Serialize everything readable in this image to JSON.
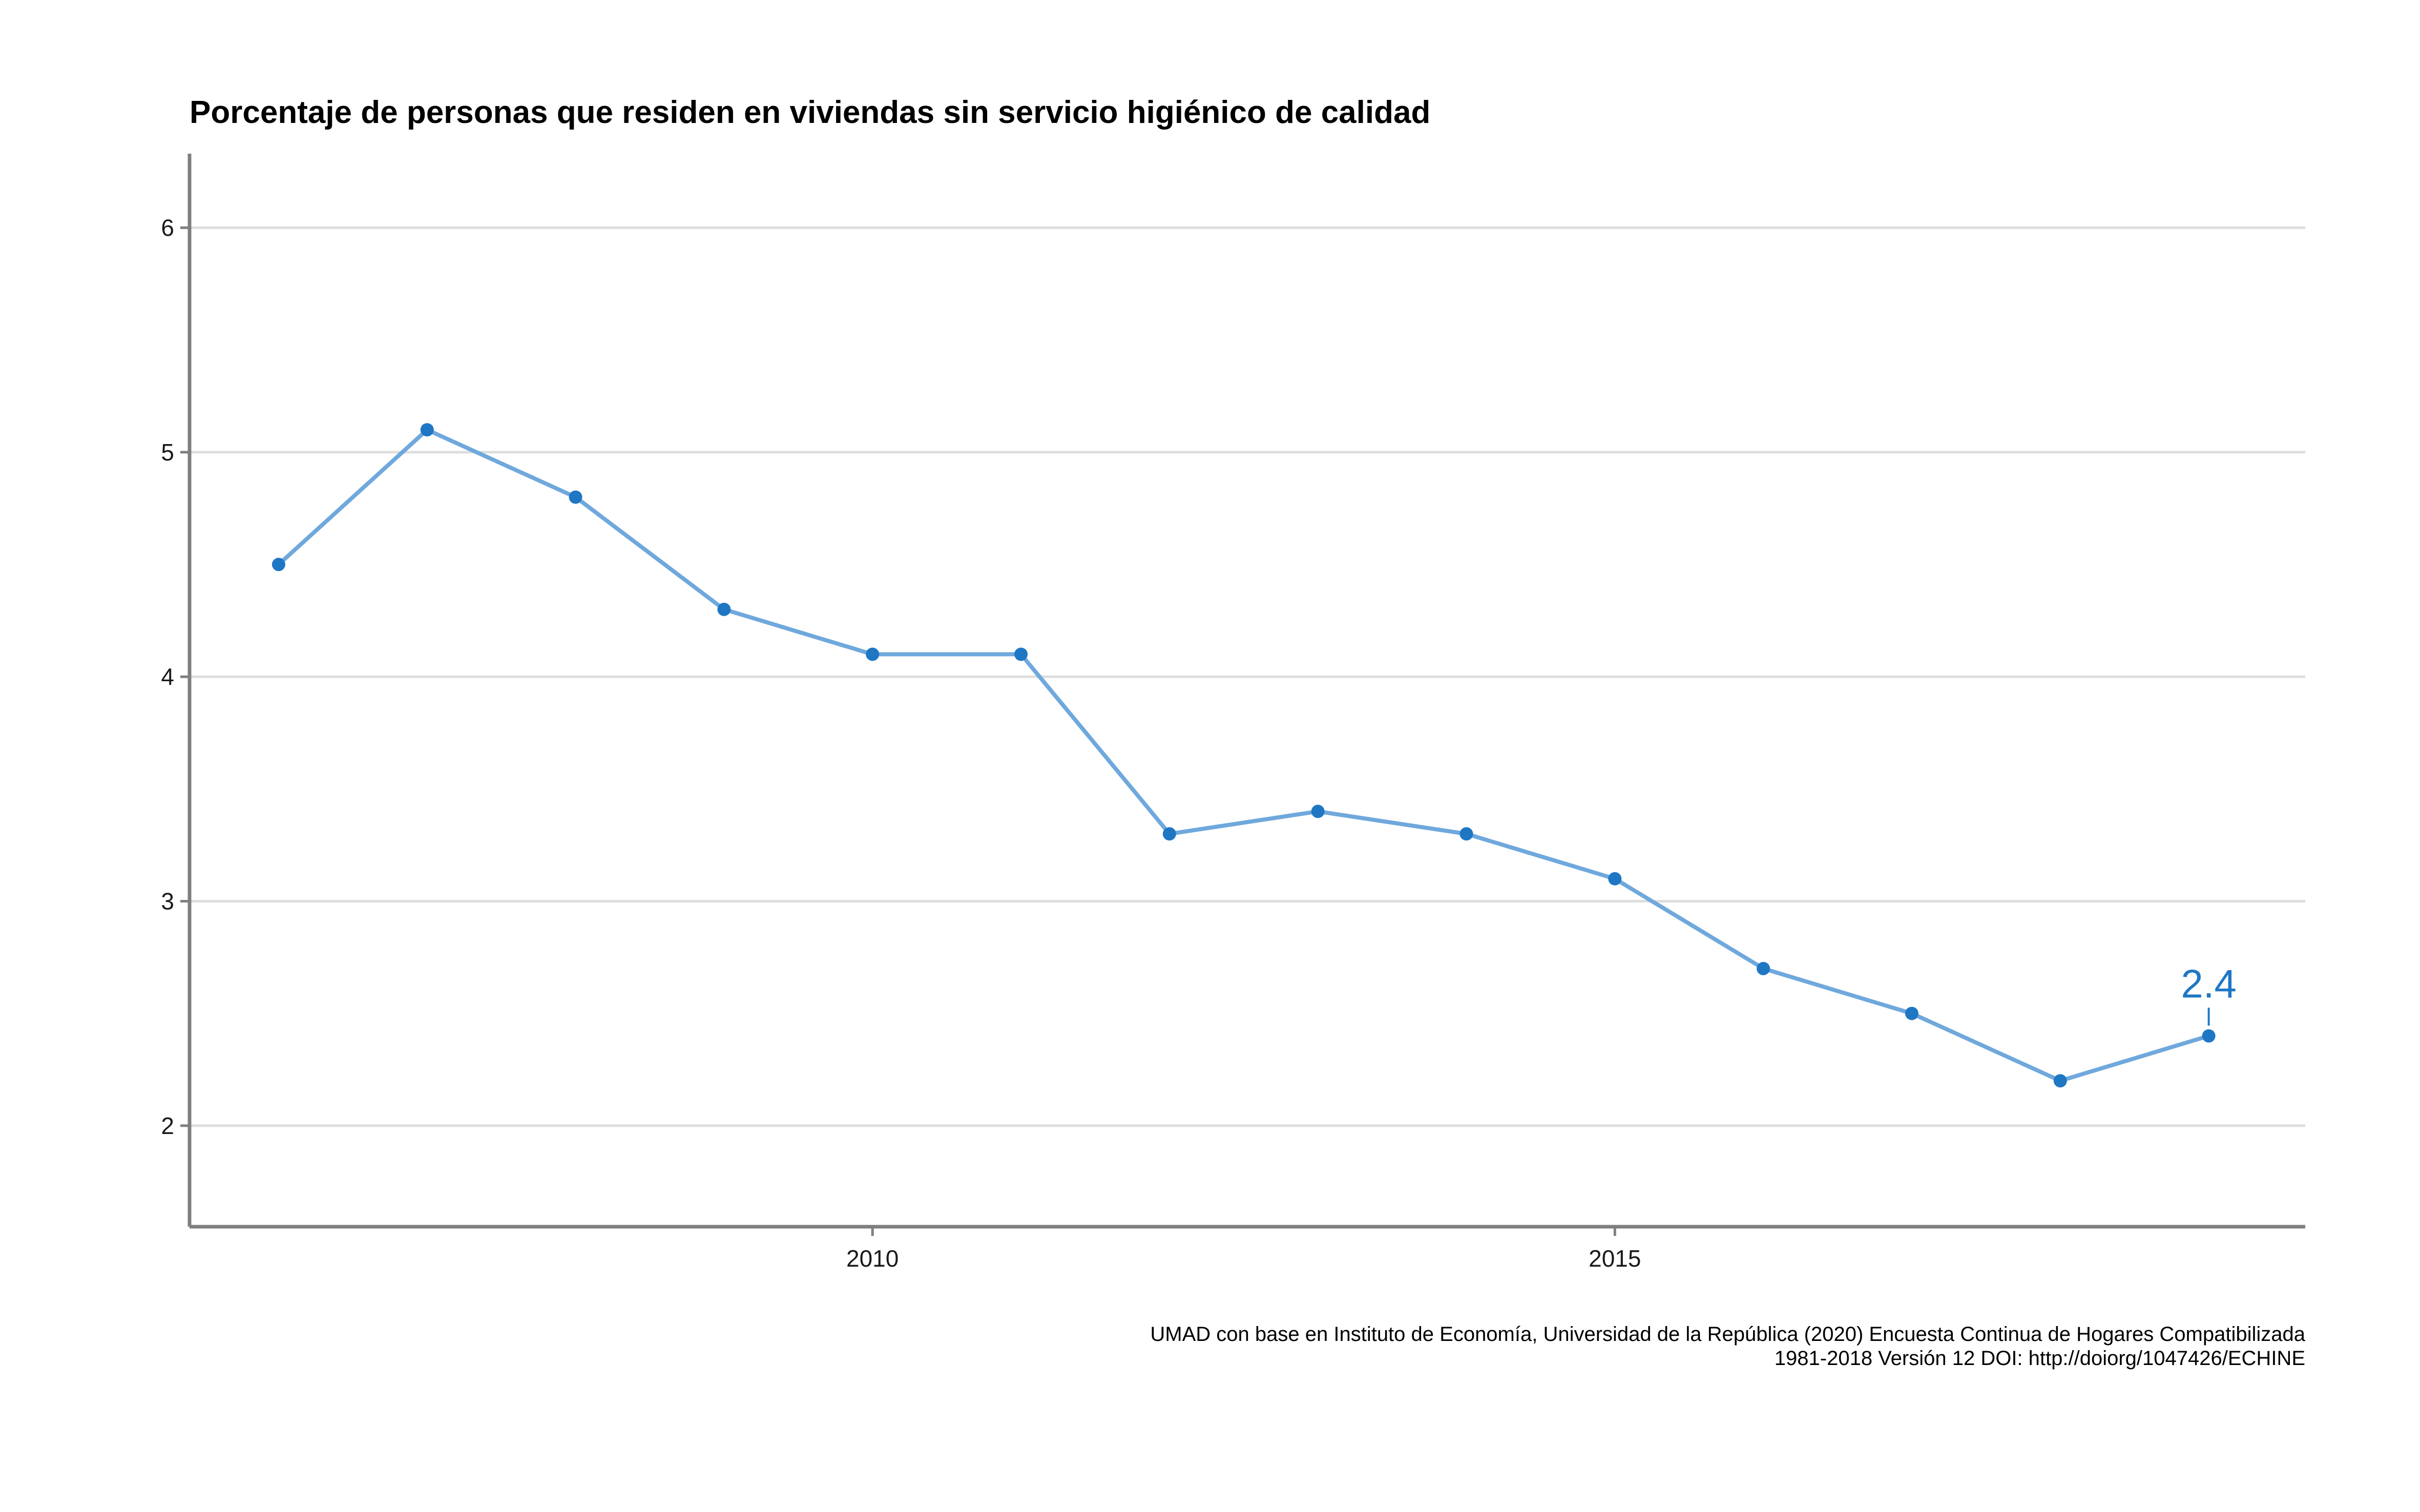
{
  "chart_data": {
    "type": "line",
    "title": "Porcentaje de personas que residen en viviendas sin servicio higiénico de calidad",
    "xlabel": "",
    "ylabel": "",
    "x": [
      2006,
      2007,
      2008,
      2009,
      2010,
      2011,
      2012,
      2013,
      2014,
      2015,
      2016,
      2017,
      2018,
      2019
    ],
    "series": [
      {
        "values": [
          4.5,
          5.1,
          4.8,
          4.3,
          4.1,
          4.1,
          3.3,
          3.4,
          3.3,
          3.1,
          2.7,
          2.5,
          2.2,
          2.4
        ]
      }
    ],
    "xlim": [
      2005.4,
      2019.65
    ],
    "ylim": [
      1.55,
      6.33
    ],
    "x_ticks": [
      2010,
      2015
    ],
    "x_tick_labels": [
      "2010",
      "2015"
    ],
    "y_ticks": [
      2,
      3,
      4,
      5,
      6
    ],
    "y_tick_labels": [
      "2",
      "3",
      "4",
      "5",
      "6"
    ],
    "grid": "horizontal",
    "annotation": {
      "x": 2019,
      "y": 2.4,
      "text": "2.4"
    },
    "caption": [
      "UMAD con base en Instituto de Economía, Universidad de la República (2020) Encuesta Continua de Hogares Compatibilizada",
      "1981-2018 Versión 12 DOI: http://doiorg/1047426/ECHINE"
    ],
    "colors": {
      "line": "#6fa8dc",
      "point": "#1f77c4",
      "label": "#1f77c4",
      "grid": "#dedede",
      "axis": "#7f7f7f"
    }
  }
}
